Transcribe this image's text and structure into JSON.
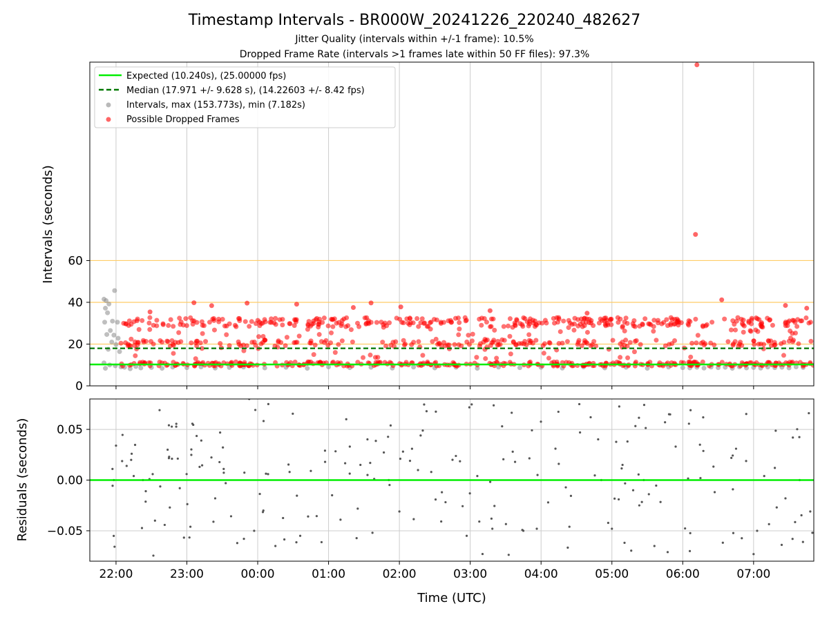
{
  "header": {
    "title": "Timestamp Intervals - BR000W_20241226_220240_482627",
    "subtitle_1": "Jitter Quality (intervals within +/-1 frame): 10.5%",
    "subtitle_2": "Dropped Frame Rate (intervals >1 frames late within 50 FF files): 97.3%"
  },
  "colors": {
    "expected_line": "#00ee00",
    "median_line": "#007700",
    "intervals_points": "#8a8a8a",
    "dropped_points": "#ff0000",
    "threshold_lines": "#ffcc66",
    "grid": "#cccccc",
    "residual_points": "#555555"
  },
  "chart_data": [
    {
      "type": "scatter",
      "panel": "top",
      "xlabel": "",
      "ylabel": "Intervals (seconds)",
      "x_type": "time (UTC, hours relative to 00:00)",
      "xlim": [
        -2.37,
        7.85
      ],
      "ylim": [
        0,
        155
      ],
      "x_ticks": [
        -2,
        -1,
        0,
        1,
        2,
        3,
        4,
        5,
        6,
        7
      ],
      "y_ticks": [
        0,
        20,
        40,
        60
      ],
      "y_tick_labels": [
        "0",
        "20",
        "40",
        "60"
      ],
      "grid": "vertical",
      "horizontal_reference_lines": [
        20,
        40,
        60
      ],
      "legend_position": "top-left",
      "expected": {
        "label": "Expected (10.240s), (25.00000 fps)",
        "value": 10.24
      },
      "median": {
        "label": "Median (17.971 +/- 9.628 s), (14.22603 +/- 8.42 fps)",
        "value": 17.971
      },
      "series": [
        {
          "name": "Intervals, max (153.773s), min (7.182s)",
          "points": [
            [
              -2.17,
              41.5
            ],
            [
              -2.14,
              40.8
            ],
            [
              -2.1,
              39.2
            ],
            [
              -2.02,
              45.6
            ],
            [
              -2.15,
              37.2
            ],
            [
              -2.12,
              35.0
            ],
            [
              -2.05,
              31.0
            ],
            [
              -1.98,
              30.5
            ],
            [
              -2.16,
              30.5
            ],
            [
              -2.08,
              26.5
            ],
            [
              -2.13,
              24.6
            ],
            [
              -2.03,
              24.3
            ],
            [
              -1.97,
              22.8
            ],
            [
              -2.06,
              21.0
            ],
            [
              -2.0,
              19.8
            ],
            [
              -2.11,
              17.5
            ],
            [
              -1.95,
              16.4
            ],
            [
              -2.17,
              11.0
            ],
            [
              -2.09,
              10.0
            ],
            [
              -2.01,
              9.6
            ],
            [
              -1.93,
              9.1
            ],
            [
              -2.15,
              8.4
            ],
            [
              -1.88,
              8.9
            ],
            [
              -1.8,
              8.2
            ],
            [
              -1.72,
              9.3
            ],
            [
              -1.65,
              8.6
            ],
            [
              -1.5,
              8.8
            ],
            [
              -1.35,
              8.4
            ],
            [
              -1.2,
              9.0
            ],
            [
              -1.0,
              8.7
            ],
            [
              -0.8,
              9.1
            ],
            [
              -0.6,
              8.5
            ],
            [
              -0.4,
              8.8
            ],
            [
              -0.2,
              9.0
            ],
            [
              0.1,
              8.6
            ],
            [
              0.4,
              8.9
            ],
            [
              0.7,
              8.4
            ],
            [
              1.0,
              9.1
            ],
            [
              1.3,
              8.7
            ],
            [
              1.6,
              8.9
            ],
            [
              1.9,
              8.5
            ],
            [
              2.2,
              9.0
            ],
            [
              2.5,
              8.6
            ],
            [
              2.8,
              8.9
            ],
            [
              3.1,
              8.4
            ],
            [
              3.4,
              9.0
            ],
            [
              3.7,
              8.7
            ],
            [
              4.0,
              8.9
            ],
            [
              4.3,
              8.5
            ],
            [
              4.6,
              9.1
            ],
            [
              4.9,
              8.6
            ],
            [
              5.2,
              8.9
            ],
            [
              5.5,
              8.4
            ],
            [
              5.8,
              9.0
            ],
            [
              6.0,
              8.7
            ],
            [
              6.1,
              8.6
            ],
            [
              6.2,
              8.9
            ],
            [
              6.3,
              8.5
            ],
            [
              6.4,
              9.0
            ],
            [
              6.5,
              8.7
            ],
            [
              6.6,
              8.9
            ],
            [
              6.7,
              8.4
            ],
            [
              6.8,
              9.1
            ],
            [
              6.9,
              8.6
            ],
            [
              7.0,
              8.8
            ],
            [
              7.1,
              8.5
            ],
            [
              7.2,
              9.0
            ],
            [
              7.3,
              8.7
            ],
            [
              7.4,
              8.9
            ],
            [
              7.5,
              8.6
            ],
            [
              7.6,
              9.1
            ],
            [
              7.7,
              8.8
            ]
          ]
        },
        {
          "name": "Possible Dropped Frames",
          "points": [
            [
              -0.9,
              39.8
            ],
            [
              -0.65,
              38.4
            ],
            [
              -0.15,
              39.6
            ],
            [
              0.55,
              39.1
            ],
            [
              1.6,
              39.7
            ],
            [
              2.02,
              37.8
            ],
            [
              6.55,
              41.2
            ],
            [
              6.18,
              72.5
            ],
            [
              6.2,
              153.7
            ],
            [
              -1.52,
              35.4
            ],
            [
              1.35,
              37.5
            ],
            [
              3.28,
              36.0
            ],
            [
              4.65,
              34.8
            ],
            [
              7.45,
              38.5
            ],
            [
              7.75,
              37.2
            ]
          ],
          "bands": [
            {
              "center": 30.5,
              "spread": 2.2,
              "density": "high"
            },
            {
              "center": 20.5,
              "spread": 1.5,
              "density": "medium"
            },
            {
              "center": 10.5,
              "spread": 1.0,
              "density": "high"
            }
          ]
        }
      ]
    },
    {
      "type": "scatter",
      "panel": "bottom",
      "xlabel": "Time (UTC)",
      "ylabel": "Residuals (seconds)",
      "xlim": [
        -2.37,
        7.85
      ],
      "ylim": [
        -0.08,
        0.08
      ],
      "x_ticks": [
        -2,
        -1,
        0,
        1,
        2,
        3,
        4,
        5,
        6,
        7
      ],
      "x_tick_labels": [
        "22:00",
        "23:00",
        "00:00",
        "01:00",
        "02:00",
        "03:00",
        "04:00",
        "05:00",
        "06:00",
        "07:00"
      ],
      "y_ticks": [
        -0.05,
        0.0,
        0.05
      ],
      "y_tick_labels": [
        "−0.05",
        "0.00",
        "0.05"
      ],
      "grid": "both",
      "zero_line": 0.0,
      "series": [
        {
          "name": "",
          "points": [
            [
              -2.05,
              0.011
            ],
            [
              -2.0,
              0.034
            ],
            [
              -2.03,
              0.0
            ],
            [
              -1.85,
              0.014
            ],
            [
              -1.75,
              0.004
            ],
            [
              -1.62,
              0.0
            ],
            [
              -1.58,
              -0.011
            ],
            [
              -1.45,
              -0.04
            ],
            [
              -1.25,
              0.023
            ],
            [
              -1.21,
              0.021
            ],
            [
              -1.1,
              -0.008
            ],
            [
              -0.95,
              -0.046
            ],
            [
              -0.82,
              0.013
            ],
            [
              -0.6,
              -0.018
            ],
            [
              -0.48,
              0.011
            ],
            [
              -0.12,
              0.08
            ],
            [
              0.15,
              0.075
            ],
            [
              0.08,
              -0.03
            ],
            [
              -0.05,
              -0.05
            ],
            [
              0.25,
              -0.065
            ],
            [
              0.45,
              0.008
            ],
            [
              0.6,
              -0.055
            ],
            [
              0.75,
              0.009
            ],
            [
              0.95,
              0.029
            ],
            [
              1.05,
              -0.015
            ],
            [
              1.25,
              0.06
            ],
            [
              1.3,
              0.033
            ],
            [
              1.45,
              0.015
            ],
            [
              1.55,
              0.005
            ],
            [
              1.62,
              -0.052
            ],
            [
              1.85,
              0.0
            ],
            [
              2.0,
              -0.031
            ],
            [
              2.15,
              0.019
            ],
            [
              2.3,
              0.044
            ],
            [
              2.45,
              0.008
            ],
            [
              2.6,
              -0.012
            ],
            [
              2.75,
              0.02
            ],
            [
              2.95,
              -0.055
            ],
            [
              3.1,
              0.004
            ],
            [
              3.3,
              -0.038
            ],
            [
              3.45,
              0.053
            ],
            [
              3.6,
              0.028
            ],
            [
              3.75,
              -0.05
            ],
            [
              3.95,
              0.005
            ],
            [
              4.1,
              -0.022
            ],
            [
              4.25,
              0.016
            ],
            [
              4.4,
              -0.046
            ],
            [
              4.55,
              0.047
            ],
            [
              4.7,
              0.062
            ],
            [
              4.85,
              0.0
            ],
            [
              5.0,
              -0.048
            ],
            [
              5.15,
              0.015
            ],
            [
              5.3,
              -0.01
            ],
            [
              5.45,
              0.0
            ],
            [
              5.6,
              -0.065
            ],
            [
              5.75,
              0.057
            ],
            [
              5.9,
              0.033
            ],
            [
              6.1,
              -0.07
            ],
            [
              6.25,
              0.002
            ],
            [
              7.0,
              -0.073
            ],
            [
              7.05,
              -0.05
            ],
            [
              7.15,
              0.004
            ],
            [
              7.3,
              0.012
            ],
            [
              7.45,
              -0.018
            ],
            [
              7.55,
              -0.058
            ],
            [
              7.65,
              0.0
            ],
            [
              7.78,
              0.066
            ],
            [
              7.8,
              -0.031
            ],
            [
              7.83,
              -0.052
            ]
          ]
        }
      ]
    }
  ],
  "legend": {
    "expected_label": "Expected (10.240s), (25.00000 fps)",
    "median_label": "Median (17.971 +/- 9.628 s), (14.22603 +/- 8.42 fps)",
    "intervals_label": "Intervals, max (153.773s), min (7.182s)",
    "dropped_label": "Possible Dropped Frames"
  }
}
